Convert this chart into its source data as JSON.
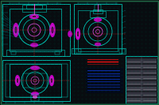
{
  "bg_color": "#080c10",
  "draw": "#00ccbb",
  "draw2": "#00aaaa",
  "mag": "#dd00dd",
  "pink": "#ff55ff",
  "red": "#ff1111",
  "blue": "#1144ff",
  "blue2": "#2255ff",
  "gray": "#888899",
  "white": "#cccccc",
  "green": "#00ff88",
  "dot": "#004433",
  "figsize": [
    2.0,
    1.33
  ],
  "dpi": 100
}
